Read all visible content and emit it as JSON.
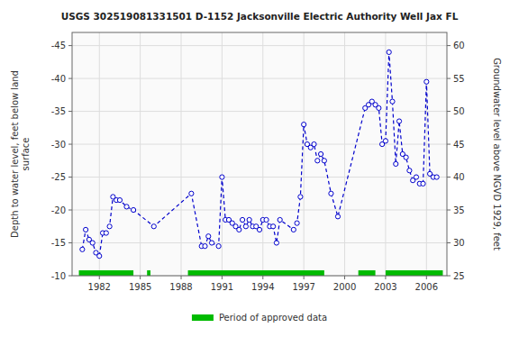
{
  "chart_data": {
    "type": "line",
    "title": "USGS 302519081331501 D-1152 Jacksonville Electric Authority Well Jax FL",
    "ylabel": "Depth to water level, feet below land\nsurface",
    "y2label": "Groundwater level above NGVD 1929, feet",
    "x": [
      1980.75,
      1981.0,
      1981.25,
      1981.5,
      1981.75,
      1982.0,
      1982.25,
      1982.5,
      1982.75,
      1983.0,
      1983.25,
      1983.5,
      1984.0,
      1984.5,
      1986.0,
      1988.75,
      1989.5,
      1989.75,
      1990.0,
      1990.25,
      1990.75,
      1991.0,
      1991.25,
      1991.5,
      1991.75,
      1992.0,
      1992.25,
      1992.5,
      1992.75,
      1993.0,
      1993.25,
      1993.5,
      1993.75,
      1994.0,
      1994.25,
      1994.5,
      1994.75,
      1995.0,
      1995.25,
      1996.25,
      1996.5,
      1996.75,
      1997.0,
      1997.25,
      1997.5,
      1997.75,
      1998.0,
      1998.25,
      1998.5,
      1999.0,
      1999.5,
      2001.5,
      2001.75,
      2002.0,
      2002.25,
      2002.5,
      2002.75,
      2003.0,
      2003.25,
      2003.5,
      2003.75,
      2004.0,
      2004.25,
      2004.5,
      2004.75,
      2005.0,
      2005.25,
      2005.5,
      2005.75,
      2006.0,
      2006.25,
      2006.5,
      2006.75
    ],
    "values": [
      -14.0,
      -17.0,
      -15.5,
      -15.0,
      -13.5,
      -13.0,
      -16.5,
      -16.5,
      -17.5,
      -22.0,
      -21.5,
      -21.5,
      -20.5,
      -20.0,
      -17.5,
      -22.5,
      -14.5,
      -14.5,
      -16.0,
      -15.0,
      -14.5,
      -25.0,
      -18.5,
      -18.5,
      -18.0,
      -17.5,
      -17.0,
      -18.5,
      -17.5,
      -18.5,
      -17.5,
      -17.5,
      -17.0,
      -18.5,
      -18.5,
      -17.5,
      -17.5,
      -15.0,
      -18.5,
      -17.0,
      -18.0,
      -22.0,
      -33.0,
      -30.0,
      -29.5,
      -30.0,
      -27.5,
      -28.5,
      -27.5,
      -22.5,
      -19.0,
      -35.5,
      -36.0,
      -36.5,
      -36.0,
      -35.5,
      -30.0,
      -30.5,
      -44.0,
      -36.5,
      -27.0,
      -33.5,
      -28.5,
      -28.0,
      -26.0,
      -24.5,
      -25.0,
      -24.0,
      -24.0,
      -39.5,
      -25.5,
      -25.0,
      -25.0
    ],
    "color": "#0000cc",
    "marker": "circle",
    "line_style": "dashed",
    "periods": {
      "name": "Period of approved data",
      "color": "#00bb00",
      "ranges": [
        [
          1980.5,
          1984.5
        ],
        [
          1985.5,
          1985.75
        ],
        [
          1988.5,
          1998.5
        ],
        [
          2001.0,
          2002.25
        ],
        [
          2003.0,
          2007.2
        ]
      ]
    },
    "xlim": [
      1980.0,
      2007.5
    ],
    "xticks": [
      1982,
      1985,
      1988,
      1991,
      1994,
      1997,
      2000,
      2003,
      2006
    ],
    "ylim": [
      -10,
      -47
    ],
    "yticks": [
      -10,
      -15,
      -20,
      -25,
      -30,
      -35,
      -40,
      -45
    ],
    "y2lim": [
      25,
      62
    ],
    "y2ticks": [
      25,
      30,
      35,
      40,
      45,
      50,
      55,
      60
    ],
    "grid": true,
    "legend": "bottom"
  }
}
